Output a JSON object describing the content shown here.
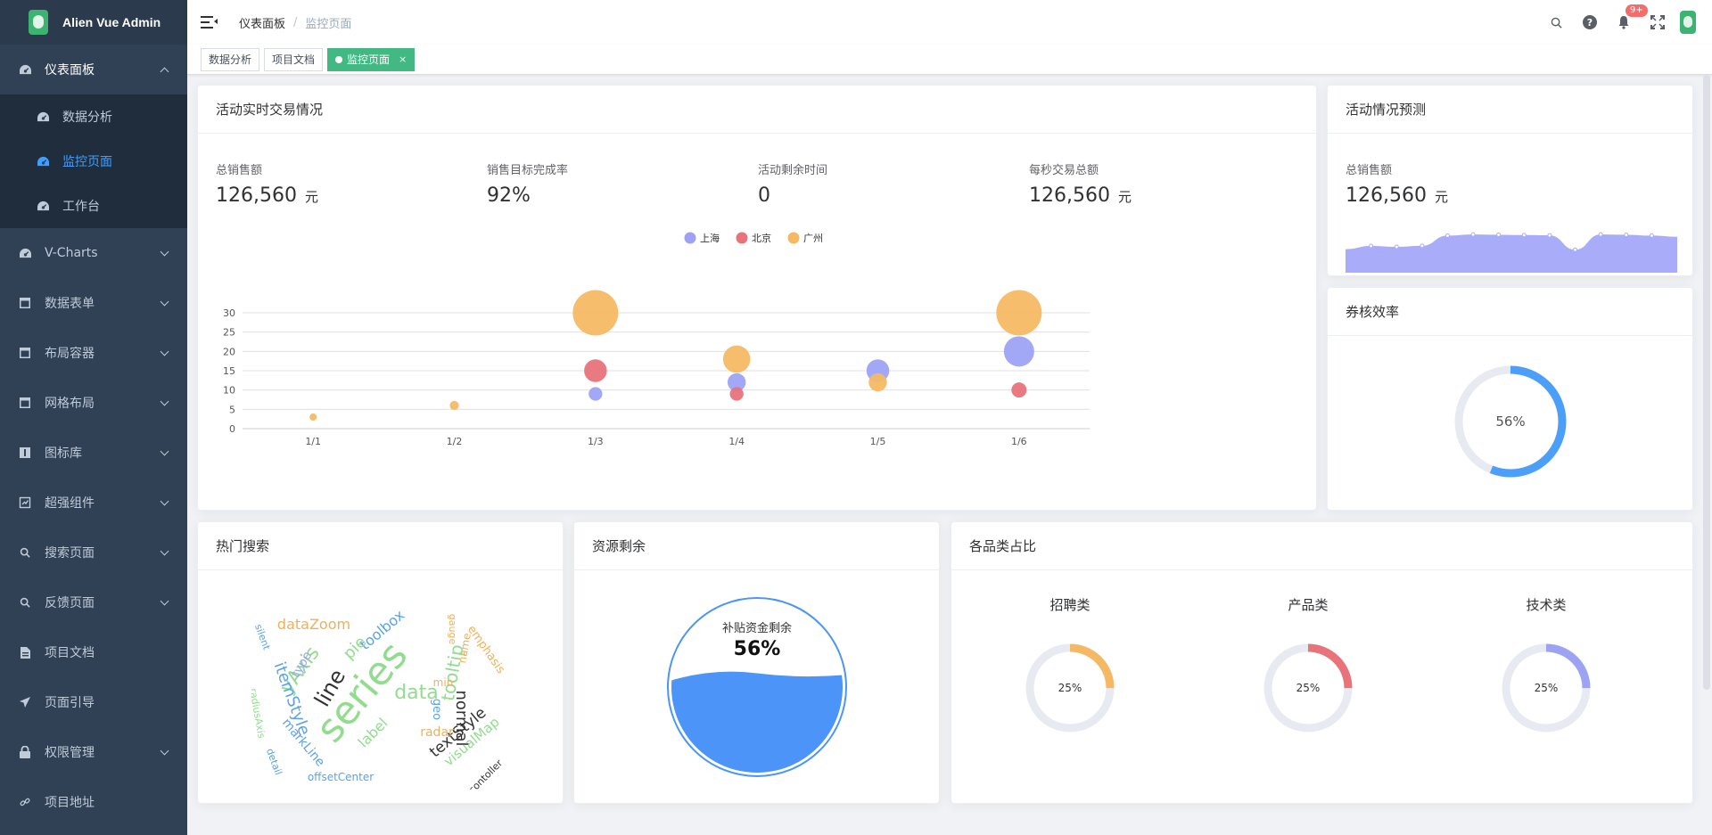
{
  "app": {
    "title": "Alien Vue Admin"
  },
  "sidebar": {
    "items": [
      {
        "label": "仪表面板",
        "icon": "dashboard-icon",
        "open": true,
        "children": [
          {
            "label": "数据分析",
            "icon": "dashboard-icon"
          },
          {
            "label": "监控页面",
            "icon": "dashboard-icon",
            "active": true
          },
          {
            "label": "工作台",
            "icon": "dashboard-icon"
          }
        ]
      },
      {
        "label": "V-Charts",
        "icon": "dashboard-icon",
        "arrow": true
      },
      {
        "label": "数据表单",
        "icon": "table-icon",
        "arrow": true
      },
      {
        "label": "布局容器",
        "icon": "table-icon",
        "arrow": true
      },
      {
        "label": "网格布局",
        "icon": "table-icon",
        "arrow": true
      },
      {
        "label": "图标库",
        "icon": "icon-library-icon",
        "arrow": true
      },
      {
        "label": "超强组件",
        "icon": "component-icon",
        "arrow": true
      },
      {
        "label": "搜索页面",
        "icon": "search-icon",
        "arrow": true
      },
      {
        "label": "反馈页面",
        "icon": "search-icon",
        "arrow": true
      },
      {
        "label": "项目文档",
        "icon": "document-icon"
      },
      {
        "label": "页面引导",
        "icon": "send-icon"
      },
      {
        "label": "权限管理",
        "icon": "lock-icon",
        "arrow": true
      },
      {
        "label": "项目地址",
        "icon": "link-icon"
      }
    ]
  },
  "header": {
    "breadcrumb": [
      "仪表面板",
      "监控页面"
    ],
    "notification_badge": "9+",
    "icons": [
      "search-icon",
      "help-icon",
      "bell-icon",
      "fullscreen-icon",
      "avatar"
    ]
  },
  "tags": [
    {
      "label": "数据分析"
    },
    {
      "label": "项目文档"
    },
    {
      "label": "监控页面",
      "active": true,
      "close": "×"
    }
  ],
  "realtime": {
    "title": "活动实时交易情况",
    "stats": [
      {
        "label": "总销售额",
        "value": "126,560",
        "unit": "元"
      },
      {
        "label": "销售目标完成率",
        "value": "92%",
        "unit": ""
      },
      {
        "label": "活动剩余时间",
        "value": "0",
        "unit": ""
      },
      {
        "label": "每秒交易总额",
        "value": "126,560",
        "unit": "元"
      }
    ]
  },
  "forecast": {
    "title": "活动情况预测",
    "label": "总销售额",
    "value": "126,560",
    "unit": "元"
  },
  "efficiency": {
    "title": "券核效率",
    "percent_text": "56%"
  },
  "hot_search": {
    "title": "热门搜索"
  },
  "resource": {
    "title": "资源剩余",
    "label": "补贴资金剩余",
    "percent_text": "56%"
  },
  "category": {
    "title": "各品类占比",
    "items": [
      {
        "name": "招聘类",
        "percent_text": "25%",
        "color": "#f5b964"
      },
      {
        "name": "产品类",
        "percent_text": "25%",
        "color": "#e8737b"
      },
      {
        "name": "技术类",
        "percent_text": "25%",
        "color": "#9da2f5"
      }
    ]
  },
  "word_cloud": [
    {
      "text": "series",
      "color": "#91dc8e",
      "size": 44
    },
    {
      "text": "line",
      "color": "#333333",
      "size": 24
    },
    {
      "text": "yAxis",
      "color": "#91dc8e",
      "size": 22
    },
    {
      "text": "data",
      "color": "#91dc8e",
      "size": 22
    },
    {
      "text": "tooltip",
      "color": "#91dc8e",
      "size": 20
    },
    {
      "text": "normal",
      "color": "#333333",
      "size": 18
    },
    {
      "text": "itemStyle",
      "color": "#5aa3e6",
      "size": 18
    },
    {
      "text": "textStyle",
      "color": "#333333",
      "size": 17
    },
    {
      "text": "dataZoom",
      "color": "#f0b05a",
      "size": 16
    },
    {
      "text": "toolbox",
      "color": "#5aa3e6",
      "size": 16
    },
    {
      "text": "pie",
      "color": "#91dc8e",
      "size": 18
    },
    {
      "text": "label",
      "color": "#91dc8e",
      "size": 16
    },
    {
      "text": "visualMap",
      "color": "#91dc8e",
      "size": 15
    },
    {
      "text": "markLine",
      "color": "#5aa3e6",
      "size": 14
    },
    {
      "text": "emphasis",
      "color": "#f0b05a",
      "size": 13
    },
    {
      "text": "radar",
      "color": "#f0b05a",
      "size": 14
    },
    {
      "text": "type",
      "color": "#9da2f5",
      "size": 14
    },
    {
      "text": "geo",
      "color": "#5aa3e6",
      "size": 13
    },
    {
      "text": "name",
      "color": "#f0b05a",
      "size": 12
    },
    {
      "text": "min",
      "color": "#f0b05a",
      "size": 12
    },
    {
      "text": "gauge",
      "color": "#f0b05a",
      "size": 11
    },
    {
      "text": "silent",
      "color": "#5aa3e6",
      "size": 11
    },
    {
      "text": "radiusAxis",
      "color": "#91dc8e",
      "size": 11
    },
    {
      "text": "detail",
      "color": "#5aa3e6",
      "size": 11
    },
    {
      "text": "offsetCenter",
      "color": "#5aa3e6",
      "size": 12
    },
    {
      "text": "contoller",
      "color": "#333333",
      "size": 11
    }
  ],
  "chart_data": [
    {
      "type": "scatter",
      "title": "",
      "legend": [
        "上海",
        "北京",
        "广州"
      ],
      "legend_placement": "top-center",
      "categories": [
        "1/1",
        "1/2",
        "1/3",
        "1/4",
        "1/5",
        "1/6"
      ],
      "ylim": [
        0,
        30
      ],
      "yticks": [
        0,
        5,
        10,
        15,
        20,
        25,
        30
      ],
      "grid": true,
      "series": [
        {
          "name": "上海",
          "color": "#9da2f5",
          "values": [
            null,
            null,
            9,
            12,
            15,
            20
          ]
        },
        {
          "name": "北京",
          "color": "#e8737b",
          "values": [
            null,
            null,
            15,
            9,
            null,
            10
          ]
        },
        {
          "name": "广州",
          "color": "#f5b964",
          "values": [
            3,
            6,
            30,
            18,
            12,
            30
          ]
        }
      ]
    },
    {
      "type": "area",
      "color": "#a9acf8",
      "values": [
        820,
        932,
        901,
        934,
        1290,
        1330,
        1320,
        1310,
        1300,
        800,
        1330,
        1320,
        1290,
        1250
      ]
    },
    {
      "type": "pie",
      "title": "",
      "values": [
        56,
        44
      ],
      "colors": [
        "#4c9ff8",
        "#e8eaf2"
      ]
    },
    {
      "type": "liquid",
      "value": 0.56,
      "color": "#4c94f8"
    },
    {
      "type": "pie",
      "values": [
        25,
        75
      ],
      "colors": [
        "#f5b964",
        "#e8eaf2"
      ]
    },
    {
      "type": "pie",
      "values": [
        25,
        75
      ],
      "colors": [
        "#e8737b",
        "#e8eaf2"
      ]
    },
    {
      "type": "pie",
      "values": [
        25,
        75
      ],
      "colors": [
        "#9da2f5",
        "#e8eaf2"
      ]
    }
  ]
}
